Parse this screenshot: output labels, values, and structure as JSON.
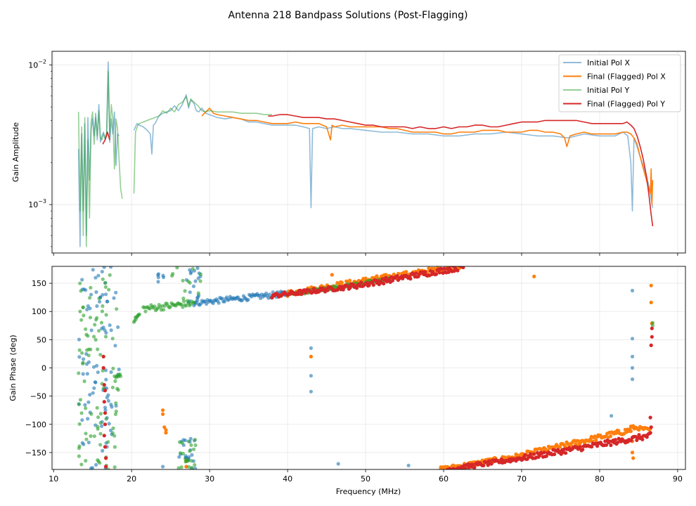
{
  "figure_title": "Antenna 218 Bandpass Solutions (Post-Flagging)",
  "colors": {
    "initial_x": "#1f77b4",
    "final_x": "#ff7f0e",
    "initial_y": "#2ca02c",
    "final_y": "#d62728"
  },
  "chart_data": [
    {
      "type": "line",
      "panel": "amplitude",
      "title": "",
      "xlabel": "",
      "ylabel": "Gain Amplitude",
      "yscale": "log",
      "xlim": [
        9.8,
        91
      ],
      "ylim": [
        0.00045,
        0.0125
      ],
      "grid": true,
      "legend_position": "upper right",
      "y_tick_labels": [
        {
          "value": 0.01,
          "base": "10",
          "exp": "−2"
        },
        {
          "value": 0.001,
          "base": "10",
          "exp": "−3"
        }
      ],
      "series": [
        {
          "name": "Initial Pol X",
          "color_key": "initial_x",
          "alpha": 0.5,
          "x": [
            13.2,
            13.4,
            13.6,
            13.8,
            14.0,
            14.2,
            14.4,
            14.6,
            14.8,
            15.0,
            15.2,
            15.4,
            15.6,
            15.8,
            16.0,
            16.2,
            16.4,
            16.6,
            16.8,
            17.0,
            17.2,
            17.4,
            17.6,
            17.8,
            18.0,
            18.2,
            18.4,
            null,
            20.3,
            20.5,
            20.7,
            21.0,
            21.5,
            22.0,
            22.4,
            22.6,
            22.8,
            23.0,
            23.5,
            24.0,
            24.5,
            25.0,
            25.5,
            26.0,
            26.5,
            27.0,
            27.3,
            27.6,
            28.0,
            28.3,
            28.6,
            29.0,
            29.5,
            30.0,
            31.0,
            32.0,
            33.0,
            34.0,
            35.0,
            36.0,
            37.0,
            38.0,
            39.0,
            40.0,
            41.0,
            42.0,
            42.8,
            43.0,
            43.2,
            44.0,
            45.0,
            46.0,
            47.0,
            48.0,
            50.0,
            52.0,
            54.0,
            56.0,
            58.0,
            60.0,
            62.0,
            64.0,
            66.0,
            68.0,
            70.0,
            72.0,
            74.0,
            76.0,
            78.0,
            80.0,
            82.0,
            83.0,
            83.6,
            84.0,
            84.2,
            84.4,
            84.8,
            85.2,
            85.6,
            86.0,
            86.4,
            86.6,
            86.8
          ],
          "y": [
            0.0025,
            0.0005,
            0.0032,
            0.0009,
            0.0038,
            0.0006,
            0.0042,
            0.0015,
            0.0034,
            0.0041,
            0.0031,
            0.0045,
            0.0029,
            0.0052,
            0.0028,
            0.0031,
            0.0033,
            0.0029,
            0.0031,
            0.0105,
            0.0028,
            0.0041,
            0.0032,
            0.0046,
            0.0019,
            0.0032,
            0.0031,
            null,
            0.0034,
            0.0036,
            0.0038,
            0.0037,
            0.0036,
            0.0034,
            0.0032,
            0.0023,
            0.0037,
            0.0038,
            0.0043,
            0.0045,
            0.0046,
            0.0047,
            0.0051,
            0.0047,
            0.0052,
            0.0061,
            0.0049,
            0.0056,
            0.0053,
            0.0047,
            0.0046,
            0.0049,
            0.0045,
            0.0044,
            0.0042,
            0.0041,
            0.0042,
            0.0041,
            0.0039,
            0.0039,
            0.0038,
            0.0037,
            0.0037,
            0.0037,
            0.0037,
            0.0036,
            0.0035,
            0.00095,
            0.0035,
            0.0036,
            0.0035,
            0.0036,
            0.0035,
            0.0035,
            0.0034,
            0.0033,
            0.0033,
            0.0032,
            0.0032,
            0.0031,
            0.0031,
            0.0032,
            0.0032,
            0.0033,
            0.0032,
            0.0031,
            0.0031,
            0.003,
            0.0032,
            0.0031,
            0.0031,
            0.0033,
            0.0031,
            0.002,
            0.0009,
            0.003,
            0.0026,
            0.0022,
            0.0019,
            0.0016,
            0.0013,
            0.0011,
            0.00095
          ]
        },
        {
          "name": "Final (Flagged) Pol X",
          "color_key": "final_x",
          "alpha": 1.0,
          "x": [
            29.0,
            29.5,
            30.0,
            30.5,
            31.0,
            32.0,
            33.0,
            34.0,
            35.0,
            36.0,
            37.0,
            38.0,
            39.0,
            40.0,
            41.0,
            42.0,
            43.0,
            44.0,
            44.5,
            45.0,
            45.5,
            45.7,
            46.0,
            47.0,
            48.0,
            49.0,
            50.0,
            51.0,
            52.0,
            53.0,
            54.0,
            55.0,
            56.0,
            57.0,
            58.0,
            59.0,
            60.0,
            61.0,
            62.0,
            63.0,
            64.0,
            65.0,
            66.0,
            67.0,
            68.0,
            69.0,
            70.0,
            71.0,
            72.0,
            73.0,
            74.0,
            75.0,
            75.5,
            75.8,
            76.2,
            77.0,
            78.0,
            79.0,
            80.0,
            81.0,
            82.0,
            83.0,
            83.5,
            84.0,
            84.4,
            84.8,
            85.2,
            85.6,
            86.0,
            86.3,
            86.5,
            86.6,
            86.7,
            86.8
          ],
          "y": [
            0.0043,
            0.0046,
            0.0049,
            0.0045,
            0.0044,
            0.0043,
            0.0042,
            0.0041,
            0.004,
            0.004,
            0.0039,
            0.0038,
            0.0038,
            0.0038,
            0.0039,
            0.0038,
            0.0038,
            0.0038,
            0.0037,
            0.0036,
            0.0029,
            0.0037,
            0.0036,
            0.0037,
            0.0036,
            0.0036,
            0.0036,
            0.0036,
            0.0036,
            0.0035,
            0.0035,
            0.0034,
            0.0033,
            0.0033,
            0.0033,
            0.0033,
            0.0032,
            0.0032,
            0.0033,
            0.0033,
            0.0033,
            0.0034,
            0.0034,
            0.0034,
            0.0033,
            0.0033,
            0.0033,
            0.0034,
            0.0034,
            0.0033,
            0.0033,
            0.0032,
            0.003,
            0.0026,
            0.0031,
            0.0032,
            0.0033,
            0.0032,
            0.0032,
            0.0032,
            0.0032,
            0.0033,
            0.0033,
            0.0032,
            0.003,
            0.0027,
            0.0022,
            0.0018,
            0.0015,
            0.0013,
            0.0012,
            0.0018,
            0.001,
            0.0015
          ]
        },
        {
          "name": "Initial Pol Y",
          "color_key": "initial_y",
          "alpha": 0.5,
          "x": [
            13.2,
            13.4,
            13.6,
            13.8,
            14.0,
            14.2,
            14.4,
            14.6,
            14.8,
            15.0,
            15.2,
            15.4,
            15.6,
            15.8,
            16.0,
            16.2,
            16.4,
            16.6,
            16.8,
            17.0,
            17.2,
            17.4,
            17.6,
            17.8,
            18.0,
            18.2,
            18.4,
            18.6,
            18.8,
            null,
            20.3,
            20.5,
            20.8,
            21.0,
            21.5,
            22.0,
            22.5,
            23.0,
            23.5,
            24.0,
            24.5,
            25.0,
            25.5,
            26.0,
            26.5,
            27.0,
            27.3,
            27.6,
            28.0,
            28.5,
            29.0,
            29.5,
            30.0,
            31.0,
            32.0,
            33.0,
            34.0,
            35.0,
            36.0,
            37.0,
            38.0
          ],
          "y": [
            0.0046,
            0.0009,
            0.0036,
            0.0006,
            0.0042,
            0.0005,
            0.0029,
            0.0008,
            0.0039,
            0.0046,
            0.0027,
            0.0042,
            0.0031,
            0.0047,
            0.003,
            0.0029,
            0.0032,
            0.003,
            0.0033,
            0.009,
            0.003,
            0.0052,
            0.0041,
            0.0018,
            0.0041,
            0.0035,
            0.0021,
            0.0013,
            0.0011,
            null,
            0.0012,
            0.0033,
            0.0037,
            0.0038,
            0.0039,
            0.004,
            0.0041,
            0.0042,
            0.0043,
            0.0047,
            0.0045,
            0.0049,
            0.0046,
            0.0052,
            0.0054,
            0.0059,
            0.0051,
            0.0057,
            0.0054,
            0.0051,
            0.0047,
            0.0046,
            0.0047,
            0.0046,
            0.0046,
            0.0046,
            0.0045,
            0.0045,
            0.0045,
            0.0044,
            0.0044
          ]
        },
        {
          "name": "Final (Flagged) Pol Y",
          "color_key": "final_y",
          "alpha": 1.0,
          "x": [
            16.3,
            16.6,
            16.9,
            17.2,
            null,
            37.5,
            38.0,
            39.0,
            40.0,
            41.0,
            42.0,
            43.0,
            44.0,
            45.0,
            46.0,
            47.0,
            48.0,
            49.0,
            50.0,
            51.0,
            52.0,
            53.0,
            54.0,
            55.0,
            56.0,
            57.0,
            58.0,
            59.0,
            60.0,
            61.0,
            62.0,
            63.0,
            64.0,
            65.0,
            66.0,
            67.0,
            68.0,
            69.0,
            70.0,
            71.0,
            72.0,
            73.0,
            74.0,
            75.0,
            76.0,
            77.0,
            78.0,
            79.0,
            80.0,
            81.0,
            82.0,
            83.0,
            83.5,
            84.0,
            84.4,
            84.8,
            85.2,
            85.6,
            86.0,
            86.3,
            86.6,
            86.8
          ],
          "y": [
            0.0027,
            0.0029,
            0.0033,
            0.0029,
            null,
            0.0043,
            0.0043,
            0.0044,
            0.0044,
            0.0043,
            0.0042,
            0.0042,
            0.0042,
            0.0041,
            0.0041,
            0.004,
            0.0039,
            0.0038,
            0.0037,
            0.0037,
            0.0036,
            0.0036,
            0.0036,
            0.0036,
            0.0035,
            0.0036,
            0.0035,
            0.0035,
            0.0036,
            0.0035,
            0.0036,
            0.0036,
            0.0037,
            0.0037,
            0.0036,
            0.0036,
            0.0037,
            0.0038,
            0.0039,
            0.0039,
            0.0039,
            0.004,
            0.004,
            0.004,
            0.004,
            0.004,
            0.0039,
            0.0038,
            0.0038,
            0.0038,
            0.0038,
            0.0038,
            0.0039,
            0.0037,
            0.0035,
            0.0031,
            0.0026,
            0.0021,
            0.0016,
            0.0012,
            0.00085,
            0.0007
          ]
        }
      ]
    },
    {
      "type": "scatter",
      "panel": "phase",
      "title": "",
      "xlabel": "Frequency (MHz)",
      "ylabel": "Gain Phase (deg)",
      "xlim": [
        9.8,
        91
      ],
      "ylim": [
        -180,
        180
      ],
      "grid": true,
      "x_ticks": [
        10,
        20,
        30,
        40,
        50,
        60,
        70,
        80,
        90
      ],
      "y_ticks": [
        -150,
        -100,
        -50,
        0,
        50,
        100,
        150
      ],
      "tick_labels": {
        "x": [
          "10",
          "20",
          "30",
          "40",
          "50",
          "60",
          "70",
          "80",
          "90"
        ],
        "y": [
          "−150",
          "−100",
          "−50",
          "0",
          "50",
          "100",
          "150"
        ]
      },
      "series": [
        {
          "name": "Initial Pol X",
          "color_key": "initial_x",
          "alpha": 0.6,
          "clusters": [
            {
              "x0": 13.2,
              "x1": 18.4,
              "y0": -180,
              "y1": 180,
              "count": 90
            },
            {
              "x0": 23.0,
              "x1": 24.5,
              "y0": 150,
              "y1": 170,
              "count": 6
            },
            {
              "x0": 26.0,
              "x1": 28.2,
              "y0": -180,
              "y1": -125,
              "count": 20
            },
            {
              "x0": 27.0,
              "x1": 29.0,
              "y0": 110,
              "y1": 180,
              "count": 18
            }
          ],
          "points": {
            "x": [
              24.0,
              43.0,
              43.0,
              43.0,
              46.5,
              55.5,
              84.2,
              84.2,
              84.2,
              84.2,
              84.2,
              81.5
            ],
            "y": [
              -175,
              35,
              -14,
              -42,
              -170,
              -173,
              137,
              52,
              20,
              0,
              -20,
              -85
            ]
          },
          "segments": [
            {
              "x0": 28.0,
              "y0": 115,
              "x1": 40.0,
              "y1": 132,
              "spread": 5
            }
          ]
        },
        {
          "name": "Final (Flagged) Pol X",
          "color_key": "final_x",
          "alpha": 1.0,
          "points": {
            "x": [
              24.0,
              24.0,
              24.2,
              24.4,
              24.4,
              27.0,
              27.0,
              43.0,
              45.7,
              71.6,
              84.2,
              84.2,
              84.3,
              86.6,
              86.6,
              86.7
            ],
            "y": [
              -75,
              -82,
              -105,
              -110,
              -115,
              -165,
              -175,
              20,
              165,
              162,
              -130,
              -150,
              -160,
              146,
              116,
              79
            ]
          },
          "segments": [
            {
              "x0": 40.0,
              "y0": 132,
              "x1": 50.0,
              "y1": 155,
              "spread": 5
            },
            {
              "x0": 50.0,
              "y0": 155,
              "x1": 62.0,
              "y1": 180,
              "spread": 5
            },
            {
              "x0": 59.5,
              "y0": -180,
              "x1": 70.0,
              "y1": -155,
              "spread": 4
            },
            {
              "x0": 70.0,
              "y0": -155,
              "x1": 84.0,
              "y1": -110,
              "spread": 5
            },
            {
              "x0": 84.0,
              "y0": -105,
              "x1": 86.5,
              "y1": -110,
              "spread": 3
            }
          ]
        },
        {
          "name": "Initial Pol Y",
          "color_key": "initial_y",
          "alpha": 0.6,
          "clusters": [
            {
              "x0": 13.2,
              "x1": 18.4,
              "y0": -180,
              "y1": 180,
              "count": 90
            },
            {
              "x0": 26.0,
              "x1": 28.2,
              "y0": -180,
              "y1": -125,
              "count": 20
            },
            {
              "x0": 25.0,
              "x1": 29.0,
              "y0": 110,
              "y1": 180,
              "count": 12
            }
          ],
          "points": {
            "x": [
              86.8,
              86.8
            ],
            "y": [
              80,
              75
            ]
          },
          "segments": [
            {
              "x0": 17.8,
              "y0": -20,
              "x1": 18.6,
              "y1": -10,
              "spread": 6
            },
            {
              "x0": 20.3,
              "y0": 84,
              "x1": 21.0,
              "y1": 95,
              "spread": 3
            },
            {
              "x0": 21.5,
              "y0": 105,
              "x1": 28.0,
              "y1": 115,
              "spread": 6
            },
            {
              "x0": 40.0,
              "y0": 130,
              "x1": 53.0,
              "y1": 157,
              "spread": 3
            }
          ]
        },
        {
          "name": "Final (Flagged) Pol Y",
          "color_key": "final_y",
          "alpha": 1.0,
          "points": {
            "x": [
              16.4,
              16.4,
              16.5,
              16.5,
              16.6,
              16.6,
              16.6,
              16.7,
              16.7,
              16.5,
              16.6,
              86.5,
              86.6,
              86.6,
              86.7,
              86.7,
              86.5
            ],
            "y": [
              20,
              0,
              -30,
              -60,
              -80,
              -100,
              -140,
              -160,
              -175,
              -120,
              -40,
              -88,
              -105,
              40,
              55,
              70,
              -115
            ]
          },
          "segments": [
            {
              "x0": 38.0,
              "y0": 128,
              "x1": 48.0,
              "y1": 144,
              "spread": 4
            },
            {
              "x0": 48.0,
              "y0": 144,
              "x1": 62.5,
              "y1": 179,
              "spread": 5
            },
            {
              "x0": 60.5,
              "y0": -180,
              "x1": 70.0,
              "y1": -160,
              "spread": 4
            },
            {
              "x0": 70.0,
              "y0": -160,
              "x1": 86.5,
              "y1": -120,
              "spread": 5
            }
          ]
        }
      ]
    }
  ]
}
